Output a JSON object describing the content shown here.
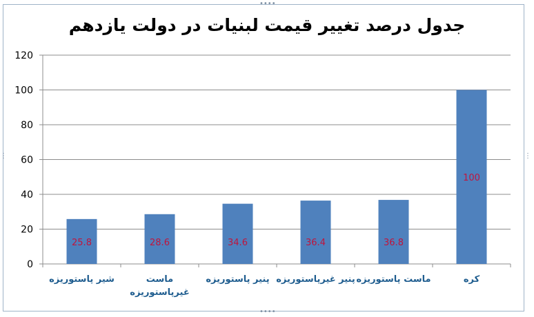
{
  "chart_data": {
    "type": "bar",
    "title": "جدول درصد تغییر قیمت لبنیات در دولت یازدهم",
    "categories": [
      [
        "شیر پاستوریزه"
      ],
      [
        "ماست",
        "غیرپاستوریزه"
      ],
      [
        "پنیر پاستوریزه"
      ],
      [
        "پنیر غیرپاستوریزه"
      ],
      [
        "ماست پاستوریزه"
      ],
      [
        "کره"
      ]
    ],
    "values": [
      25.8,
      28.6,
      34.6,
      36.4,
      36.8,
      100
    ],
    "data_labels": [
      "25.8",
      "28.6",
      "34.6",
      "36.4",
      "36.8",
      "100"
    ],
    "ylim": [
      0,
      120
    ],
    "yticks": [
      0,
      20,
      40,
      60,
      80,
      100,
      120
    ],
    "grid": true,
    "legend": "none",
    "colors": {
      "bar": "#4f81bd",
      "data_label": "#c0143c",
      "category_label": "#1f5d8f",
      "grid": "#8c8c8c"
    }
  }
}
